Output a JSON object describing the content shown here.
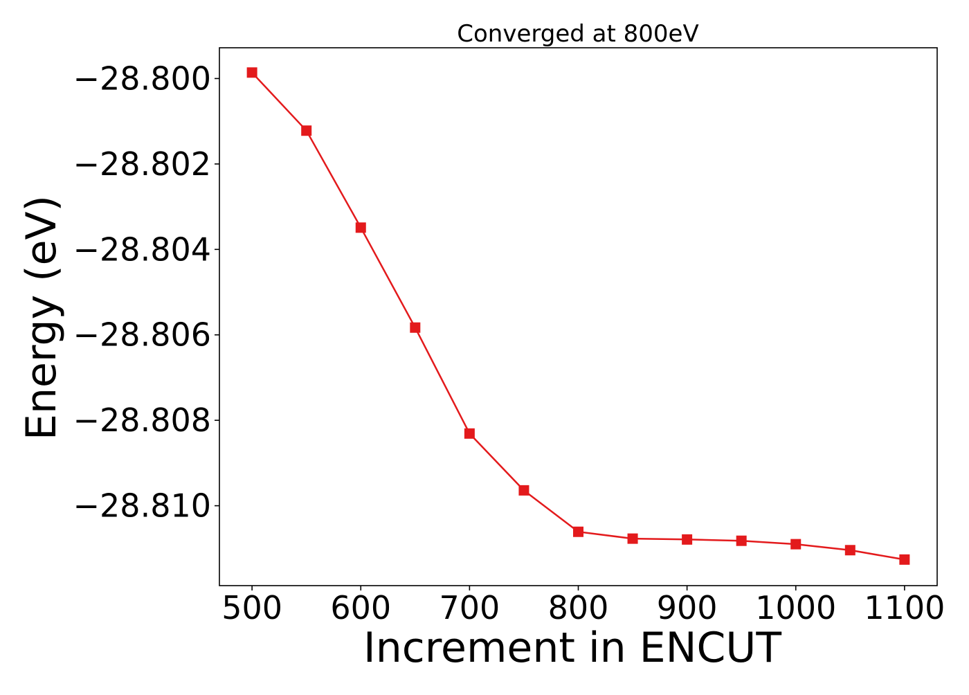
{
  "chart_data": {
    "type": "line",
    "title": "Converged at 800eV",
    "xlabel": "Increment in ENCUT",
    "ylabel": "Energy (eV)",
    "xlim": [
      470,
      1130
    ],
    "ylim": [
      -28.81187,
      -28.79928
    ],
    "x_ticks": [
      500,
      600,
      700,
      800,
      900,
      1000,
      1100
    ],
    "x_tick_labels": [
      "500",
      "600",
      "700",
      "800",
      "900",
      "1000",
      "1100"
    ],
    "y_ticks": [
      -28.8,
      -28.802,
      -28.804,
      -28.806,
      -28.808,
      -28.81
    ],
    "y_tick_labels": [
      "−28.800",
      "−28.802",
      "−28.804",
      "−28.806",
      "−28.808",
      "−28.810"
    ],
    "grid": false,
    "legend": "none",
    "series": [
      {
        "color": "#e31a1c",
        "marker": "square",
        "x": [
          500,
          550,
          600,
          650,
          700,
          750,
          800,
          850,
          900,
          950,
          1000,
          1050,
          1100
        ],
        "y": [
          -28.79986,
          -28.80122,
          -28.80349,
          -28.80583,
          -28.80831,
          -28.80964,
          -28.81061,
          -28.81077,
          -28.81079,
          -28.81082,
          -28.8109,
          -28.81104,
          -28.81126
        ]
      }
    ]
  }
}
